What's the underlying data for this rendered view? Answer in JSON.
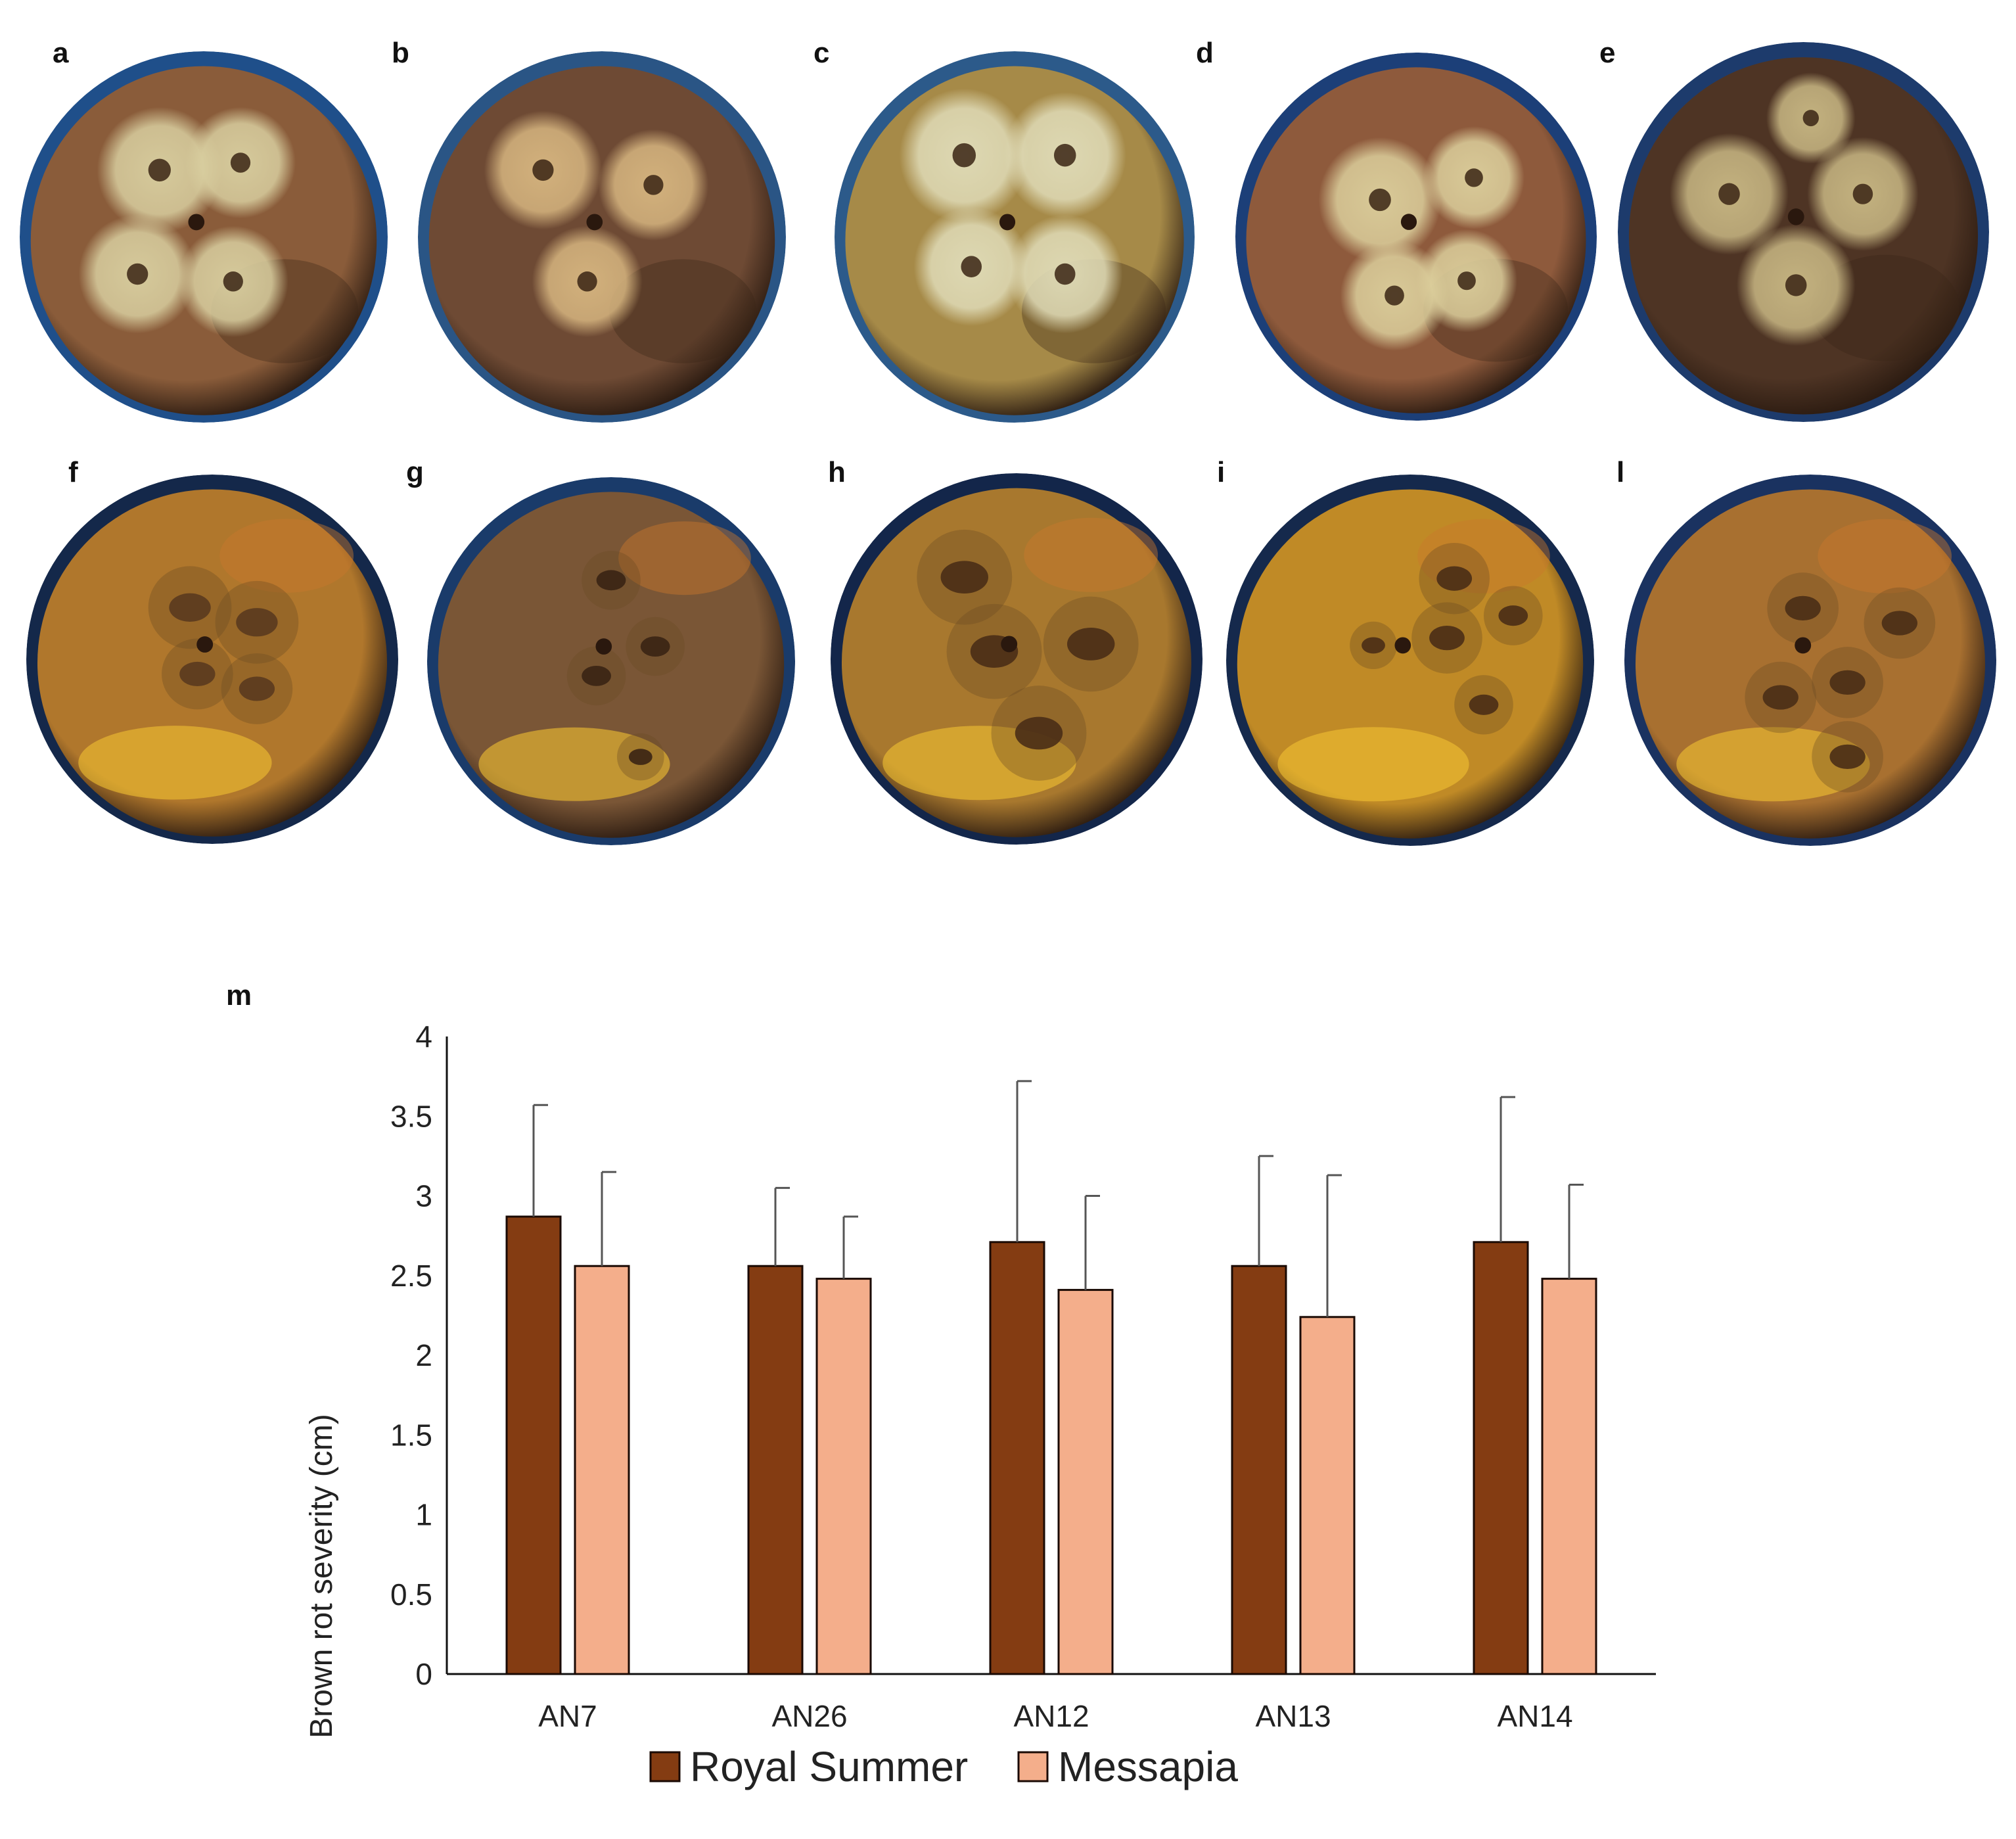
{
  "panels": [
    {
      "label": "a",
      "skin": "#8a5c3a",
      "lesion": "#d9cfa0",
      "cloth": "#1f4f8a"
    },
    {
      "label": "b",
      "skin": "#6e4a34",
      "lesion": "#d7b680",
      "cloth": "#2a5585"
    },
    {
      "label": "c",
      "skin": "#a68a48",
      "lesion": "#e0dcb8",
      "cloth": "#2c5a8a"
    },
    {
      "label": "d",
      "skin": "#8e5a3c",
      "lesion": "#dccf9c",
      "cloth": "#1c3f78"
    },
    {
      "label": "e",
      "skin": "#4e3424",
      "lesion": "#c9b884",
      "cloth": "#1d3b6c"
    },
    {
      "label": "f",
      "skin": "#b0772c",
      "lesion": "#5a3a1e",
      "cloth": "#14284a"
    },
    {
      "label": "g",
      "skin": "#7a5636",
      "lesion": "#3a2414",
      "cloth": "#1a3b6a"
    },
    {
      "label": "h",
      "skin": "#a8782e",
      "lesion": "#4a2e16",
      "cloth": "#13264a"
    },
    {
      "label": "i",
      "skin": "#c08a26",
      "lesion": "#4a2e16",
      "cloth": "#15294c"
    },
    {
      "label": "l",
      "skin": "#a87030",
      "lesion": "#4a2e16",
      "cloth": "#1a3260"
    }
  ],
  "chart_label": "m",
  "chart_data": {
    "type": "bar",
    "categories": [
      "AN7",
      "AN26",
      "AN12",
      "AN13",
      "AN14"
    ],
    "series": [
      {
        "name": "Royal Summer",
        "color": "#843c12",
        "values": [
          2.87,
          2.56,
          2.71,
          2.56,
          2.71
        ],
        "errors": [
          0.7,
          0.49,
          1.01,
          0.69,
          0.91
        ]
      },
      {
        "name": "Messapia",
        "color": "#f4ae8b",
        "values": [
          2.56,
          2.48,
          2.41,
          2.24,
          2.48
        ],
        "errors": [
          0.59,
          0.39,
          0.59,
          0.89,
          0.59
        ]
      }
    ],
    "title": "",
    "xlabel": "",
    "ylabel": "Brown rot severity (cm)",
    "ylim": [
      0,
      4
    ],
    "yticks": [
      "0",
      "0.5",
      "1",
      "1.5",
      "2",
      "2.5",
      "3",
      "3.5",
      "4"
    ],
    "grid": false,
    "legend_position": "bottom"
  }
}
